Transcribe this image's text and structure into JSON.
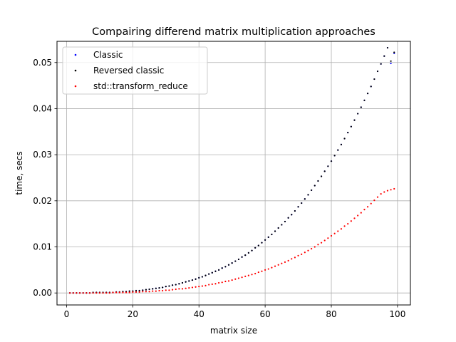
{
  "chart_data": {
    "type": "scatter",
    "title": "Compairing differend matrix multiplication approaches",
    "xlabel": "matrix size",
    "ylabel": "time, secs",
    "xlim": [
      -2.9,
      103.9
    ],
    "ylim": [
      -0.0026,
      0.0546
    ],
    "xticks": [
      0,
      20,
      40,
      60,
      80,
      100
    ],
    "yticks": [
      0.0,
      0.01,
      0.02,
      0.03,
      0.04,
      0.05
    ],
    "xtick_labels": [
      "0",
      "20",
      "40",
      "60",
      "80",
      "100"
    ],
    "ytick_labels": [
      "0.00",
      "0.01",
      "0.02",
      "0.03",
      "0.04",
      "0.05"
    ],
    "grid": true,
    "legend_position": "upper-left",
    "x_range": [
      1,
      99
    ],
    "series": [
      {
        "name": "Classic",
        "color": "#0000ff",
        "values": [
          0.0,
          0.0,
          0.0,
          0.0,
          0.0,
          0.0,
          0.0,
          0.0001,
          0.0001,
          0.0001,
          0.0001,
          0.0001,
          0.0001,
          0.0001,
          0.0002,
          0.0002,
          0.0003,
          0.0003,
          0.0004,
          0.0004,
          0.0005,
          0.0005,
          0.0006,
          0.0007,
          0.0008,
          0.0009,
          0.001,
          0.0011,
          0.0012,
          0.0014,
          0.0015,
          0.0017,
          0.0018,
          0.002,
          0.0022,
          0.0024,
          0.0026,
          0.0028,
          0.003,
          0.0033,
          0.0035,
          0.0038,
          0.0041,
          0.0044,
          0.0047,
          0.005,
          0.0054,
          0.0057,
          0.0061,
          0.0065,
          0.0069,
          0.0073,
          0.0078,
          0.0082,
          0.0087,
          0.0092,
          0.0098,
          0.0103,
          0.0109,
          0.0115,
          0.0121,
          0.0127,
          0.0134,
          0.0141,
          0.0148,
          0.0155,
          0.0163,
          0.017,
          0.0178,
          0.0187,
          0.0195,
          0.0204,
          0.0213,
          0.0223,
          0.0233,
          0.0243,
          0.0253,
          0.0264,
          0.0275,
          0.0286,
          0.0298,
          0.031,
          0.0322,
          0.0335,
          0.0348,
          0.0361,
          0.0375,
          0.0389,
          0.0403,
          0.0418,
          0.0433,
          0.0448,
          0.0464,
          0.0481,
          0.0497,
          0.0514,
          0.0532,
          0.0498,
          0.052
        ]
      },
      {
        "name": "Reversed classic",
        "color": "#000000",
        "values": [
          0.0,
          0.0,
          0.0,
          0.0,
          0.0,
          0.0,
          0.0,
          0.0001,
          0.0001,
          0.0001,
          0.0001,
          0.0001,
          0.0001,
          0.0001,
          0.0002,
          0.0002,
          0.0003,
          0.0003,
          0.0004,
          0.0004,
          0.0005,
          0.0005,
          0.0006,
          0.0007,
          0.0008,
          0.0009,
          0.001,
          0.0011,
          0.0012,
          0.0014,
          0.0015,
          0.0017,
          0.0018,
          0.002,
          0.0022,
          0.0024,
          0.0026,
          0.0028,
          0.003,
          0.0033,
          0.0035,
          0.0038,
          0.0041,
          0.0044,
          0.0047,
          0.005,
          0.0054,
          0.0057,
          0.0061,
          0.0065,
          0.0069,
          0.0073,
          0.0078,
          0.0082,
          0.0087,
          0.0092,
          0.0098,
          0.0103,
          0.0109,
          0.0115,
          0.0121,
          0.0127,
          0.0134,
          0.0141,
          0.0148,
          0.0155,
          0.0163,
          0.017,
          0.0178,
          0.0187,
          0.0195,
          0.0204,
          0.0213,
          0.0223,
          0.0233,
          0.0243,
          0.0253,
          0.0264,
          0.0275,
          0.0286,
          0.0298,
          0.031,
          0.0322,
          0.0335,
          0.0348,
          0.0361,
          0.0375,
          0.0389,
          0.0403,
          0.0418,
          0.0433,
          0.0448,
          0.0464,
          0.0481,
          0.0497,
          0.0514,
          0.0532,
          0.0503,
          0.0522
        ]
      },
      {
        "name": "std::transform_reduce",
        "color": "#ff0000",
        "values": [
          0.0,
          0.0,
          0.0,
          0.0,
          0.0,
          0.0,
          0.0,
          0.0,
          0.0,
          0.0,
          0.0,
          0.0,
          0.0,
          0.0001,
          0.0001,
          0.0001,
          0.0001,
          0.0001,
          0.0001,
          0.0002,
          0.0002,
          0.0002,
          0.0003,
          0.0003,
          0.0003,
          0.0004,
          0.0004,
          0.0005,
          0.0005,
          0.0006,
          0.0006,
          0.0007,
          0.0008,
          0.0009,
          0.0009,
          0.001,
          0.0011,
          0.0012,
          0.0013,
          0.0014,
          0.0015,
          0.0016,
          0.0018,
          0.0019,
          0.002,
          0.0022,
          0.0023,
          0.0025,
          0.0026,
          0.0028,
          0.003,
          0.0032,
          0.0034,
          0.0036,
          0.0038,
          0.004,
          0.0042,
          0.0045,
          0.0047,
          0.005,
          0.0052,
          0.0055,
          0.0058,
          0.0061,
          0.0064,
          0.0067,
          0.007,
          0.0074,
          0.0077,
          0.0081,
          0.0084,
          0.0088,
          0.0092,
          0.0096,
          0.01,
          0.0105,
          0.0109,
          0.0114,
          0.0119,
          0.0124,
          0.0129,
          0.0134,
          0.0139,
          0.0145,
          0.015,
          0.0156,
          0.0162,
          0.0168,
          0.0174,
          0.0181,
          0.0187,
          0.0194,
          0.0201,
          0.0208,
          0.0215,
          0.0219,
          0.0222,
          0.0224,
          0.0226
        ]
      }
    ]
  }
}
